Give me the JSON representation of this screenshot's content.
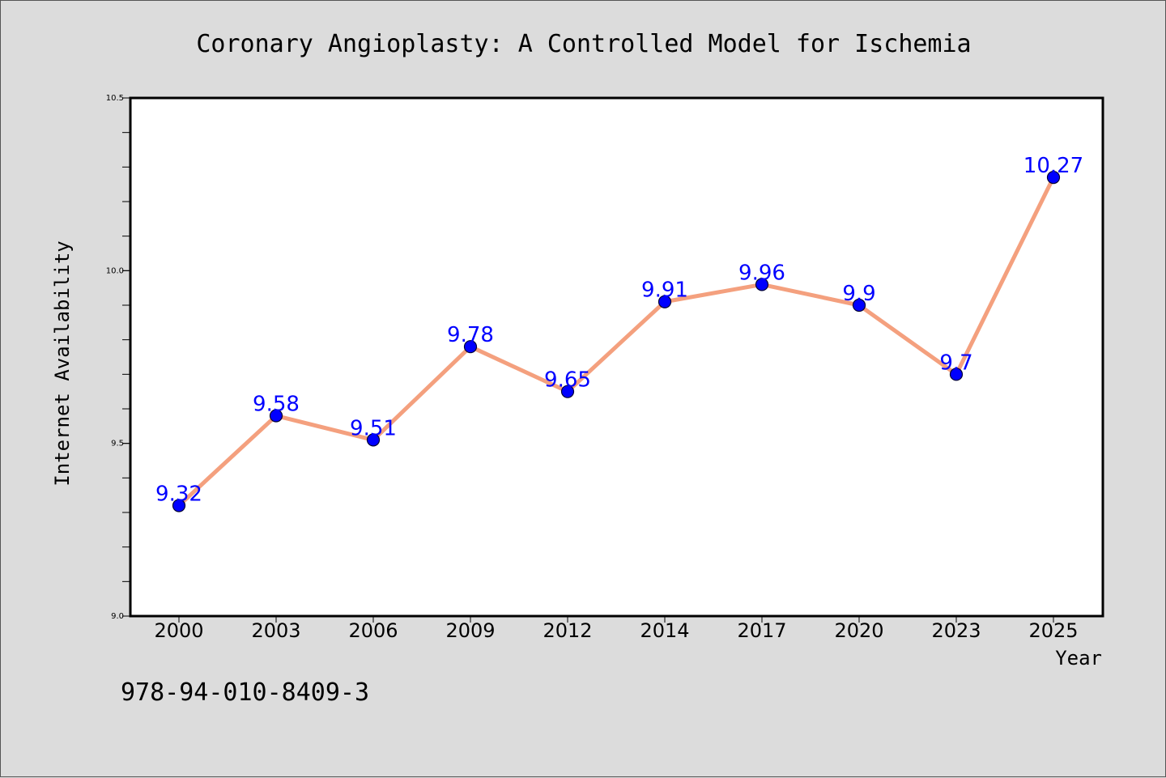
{
  "chart_data": {
    "type": "line",
    "title": "Coronary Angioplasty: A Controlled Model for Ischemia",
    "xlabel": "Year",
    "ylabel": "Internet Availability",
    "categories": [
      "2000",
      "2003",
      "2006",
      "2009",
      "2012",
      "2014",
      "2017",
      "2020",
      "2023",
      "2025"
    ],
    "series": [
      {
        "values": [
          9.32,
          9.58,
          9.51,
          9.78,
          9.65,
          9.91,
          9.96,
          9.9,
          9.7,
          10.27
        ],
        "labels": [
          "9.32",
          "9.58",
          "9.51",
          "9.78",
          "9.65",
          "9.91",
          "9.96",
          "9.9",
          "9.7",
          "10.27"
        ]
      }
    ],
    "ylim": [
      9.0,
      10.5
    ],
    "yticks": [
      "9.0",
      "9.5",
      "10.0",
      "10.5"
    ],
    "grid": false,
    "legend": "none",
    "colors": {
      "line": "#f4a07e",
      "marker": "#0000ff",
      "marker_edge": "#000033",
      "data_label": "#0000ff",
      "background": "#dcdcdc",
      "plot_background": "#ffffff"
    }
  },
  "footer_text": "978-94-010-8409-3"
}
